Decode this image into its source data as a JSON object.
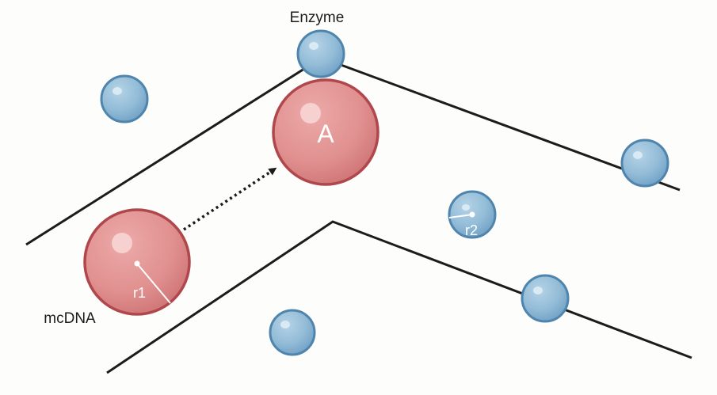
{
  "labels": {
    "enzyme": "Enzyme",
    "mcdna": "mcDNA",
    "big_sphere_letter": "A",
    "r1": "r1",
    "r2": "r2"
  },
  "colors": {
    "background": "#fdfdfb",
    "line": "#1c1c1c",
    "enzyme_fill": "#8fbad6",
    "enzyme_stroke": "#4f85ad",
    "dna_fill": "#df8a8c",
    "dna_stroke": "#b0474c"
  }
}
